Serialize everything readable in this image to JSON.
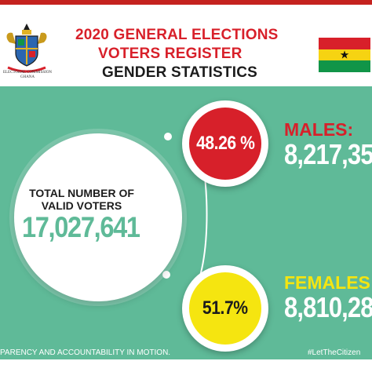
{
  "header": {
    "seal_caption": "ELECTORAL COMMISSION GHANA",
    "title_line1": "2020 GENERAL ELECTIONS",
    "title_line2": "VOTERS REGISTER",
    "title_line3": "GENDER STATISTICS"
  },
  "total": {
    "label": "TOTAL NUMBER OF VALID VOTERS",
    "value": "17,027,641"
  },
  "males": {
    "percent": "48.26 %",
    "label": "MALES:",
    "value": "8,217,35"
  },
  "females": {
    "percent": "51.7%",
    "label": "FEMALES:",
    "value": "8,810,28"
  },
  "footer": {
    "left": "PARENCY AND ACCOUNTABILITY IN MOTION.",
    "right": "#LetTheCitizen"
  },
  "colors": {
    "background": "#5fba98",
    "red": "#d7202a",
    "yellow": "#f5e510",
    "green": "#119548",
    "dark": "#1c1c1c"
  },
  "icons": {
    "seal": "coat-of-arms-icon",
    "flag": "ghana-flag-icon"
  }
}
